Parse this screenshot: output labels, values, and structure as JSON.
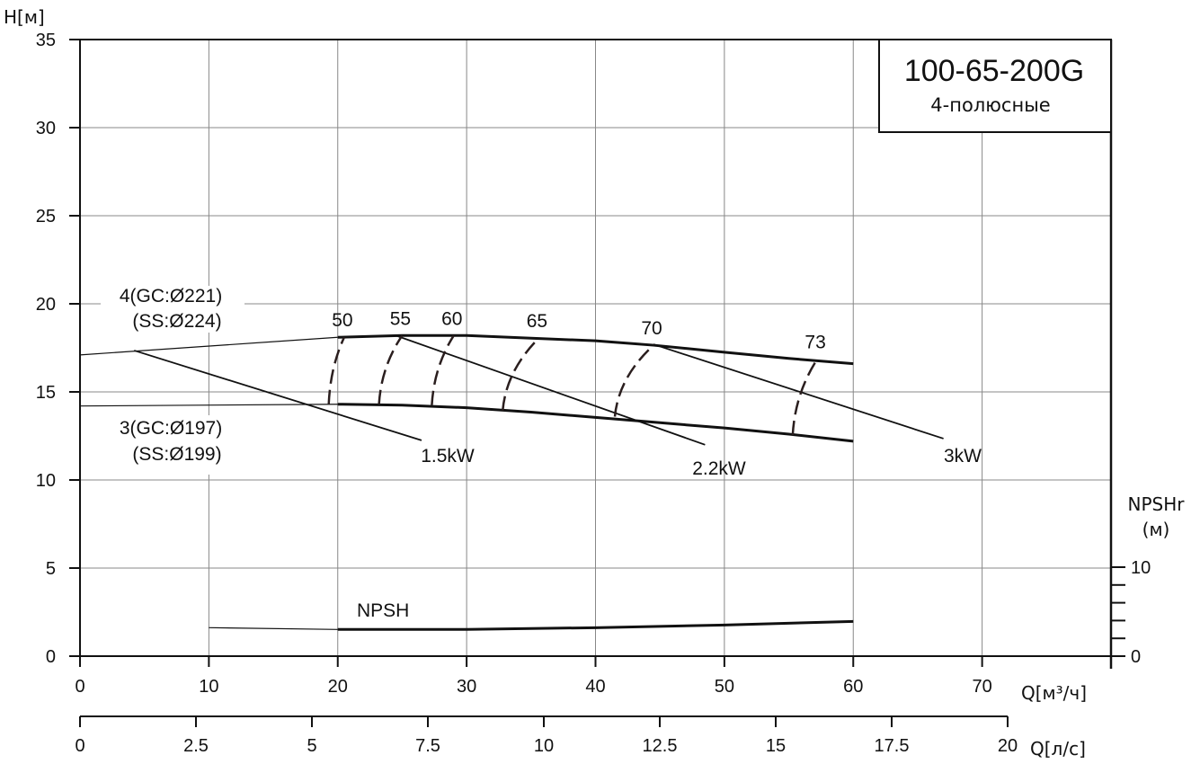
{
  "chart_data": {
    "type": "line",
    "title": "100-65-200G",
    "subtitle": "4-полюсные",
    "ylabel": "H[м]",
    "xlabel": "Q[м³/ч]",
    "x2label": "Q[л/с]",
    "y2label": "NPSHr",
    "y2unit": "(м)",
    "xlim": [
      0,
      80
    ],
    "ylim": [
      0,
      35
    ],
    "x2lim": [
      0,
      20
    ],
    "y2lim": [
      0,
      10
    ],
    "grid": true,
    "xticks": [
      0,
      10,
      20,
      30,
      40,
      50,
      60,
      70
    ],
    "yticks": [
      0,
      5,
      10,
      15,
      20,
      25,
      30,
      35
    ],
    "x2ticks": [
      "0",
      "2.5",
      "5",
      "7.5",
      "10",
      "12.5",
      "15",
      "17.5",
      "20"
    ],
    "y2ticks": [
      "0",
      "10"
    ],
    "head_curves": [
      {
        "name": "4(GC:Ø221)",
        "name2": "(SS:Ø224)",
        "extrapolated": {
          "x": [
            0,
            20
          ],
          "y": [
            17.1,
            18.1
          ]
        },
        "x": [
          20,
          25,
          30,
          35,
          40,
          44.5,
          50,
          55,
          60
        ],
        "y": [
          18.1,
          18.2,
          18.2,
          18.05,
          17.9,
          17.65,
          17.25,
          16.9,
          16.6
        ]
      },
      {
        "name": "3(GC:Ø197)",
        "name2": "(SS:Ø199)",
        "extrapolated": {
          "x": [
            0,
            20
          ],
          "y": [
            14.2,
            14.3
          ]
        },
        "x": [
          20,
          25,
          30,
          35,
          40,
          45,
          50,
          55,
          60
        ],
        "y": [
          14.3,
          14.25,
          14.1,
          13.85,
          13.55,
          13.25,
          12.95,
          12.6,
          12.2
        ]
      }
    ],
    "npsh_curve": {
      "name": "NPSH",
      "extrapolated": {
        "x": [
          10,
          20
        ],
        "y": [
          3.2,
          3.0
        ]
      },
      "x": [
        20,
        30,
        40,
        50,
        60
      ],
      "y": [
        3.0,
        3.0,
        3.2,
        3.5,
        3.9
      ]
    },
    "power_lines": [
      {
        "name": "1.5kW",
        "x": [
          4.2,
          26.5
        ],
        "y": [
          17.35,
          12.25
        ]
      },
      {
        "name": "2.2kW",
        "x": [
          24.5,
          48.5
        ],
        "y": [
          18.2,
          12.0
        ]
      },
      {
        "name": "3kW",
        "x": [
          44.5,
          67
        ],
        "y": [
          17.7,
          12.35
        ]
      }
    ],
    "efficiency_curves": [
      {
        "name": "50",
        "x": [
          19.3,
          20.5
        ],
        "y": [
          14.3,
          18.1
        ]
      },
      {
        "name": "55",
        "x": [
          23.2,
          25.0
        ],
        "y": [
          14.3,
          18.2
        ]
      },
      {
        "name": "60",
        "x": [
          27.3,
          29.0
        ],
        "y": [
          14.25,
          18.2
        ]
      },
      {
        "name": "65",
        "x": [
          32.8,
          35.6
        ],
        "y": [
          13.95,
          18.05
        ]
      },
      {
        "name": "70",
        "x": [
          41.5,
          44.5
        ],
        "y": [
          13.6,
          17.65
        ]
      },
      {
        "name": "73",
        "x": [
          55.3,
          57.2
        ],
        "y": [
          12.55,
          16.85
        ]
      }
    ]
  }
}
